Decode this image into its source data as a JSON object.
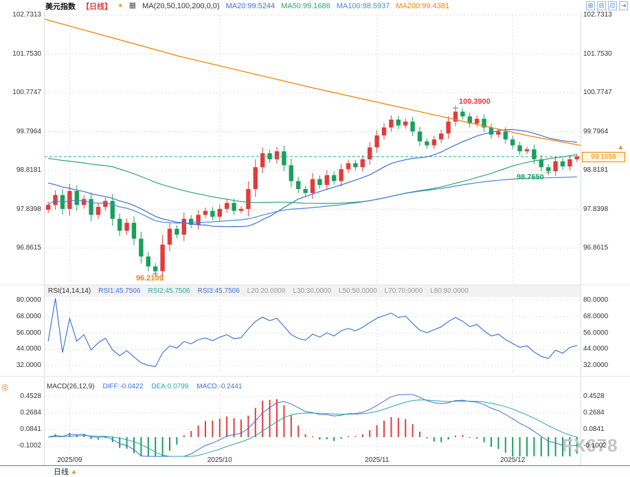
{
  "header": {
    "title": "美元指数",
    "period": "【日线】",
    "icons": [
      {
        "name": "alert-icon",
        "glyph": "●"
      },
      {
        "name": "chart-settings-icon",
        "glyph": "▦"
      }
    ],
    "ma_settings": "MA(20,50,100,200,0,0)",
    "ma20": "MA20:99.5244",
    "ma50": "MA50:99.1686",
    "ma100": "MA100:98.5937",
    "ma200": "MA200:99.4381"
  },
  "controls": {
    "icons": [
      {
        "name": "layout-grid-icon",
        "glyph": "⊞"
      },
      {
        "name": "layout-split-icon",
        "glyph": "⊟"
      },
      {
        "name": "layout-maximize-icon",
        "glyph": "⊡"
      },
      {
        "name": "collapse-panel-icon",
        "glyph": "⇥"
      }
    ]
  },
  "main_axis_labels": [
    "102.7313",
    "101.7530",
    "100.7747",
    "99.7964",
    "98.8181",
    "97.8398",
    "96.8615"
  ],
  "price_tag": "99.1658",
  "annotations": {
    "high": "100.3900",
    "recent_low": "98.7650",
    "sep_low": "96.2109"
  },
  "rsi": {
    "header": "RSI(14,14,14)",
    "rsi1": "RSI1:45.7506",
    "rsi2": "RSI2:45.7506",
    "rsi3": "RSI3:45.7506",
    "levels": [
      "L20:20.0000",
      "L30:30.0000",
      "L50:50.0000",
      "L70:70.0000",
      "L80:80.0000"
    ],
    "axis_labels": [
      "80.0000",
      "68.0000",
      "56.0000",
      "44.0000",
      "32.0000"
    ]
  },
  "macd": {
    "header": "MACD(26,12,9)",
    "diff": "DIFF:-0.0422",
    "dea": "DEA:0.0799",
    "macd": "MACD:-0.2441",
    "axis_labels": [
      "0.4528",
      "0.2684",
      "0.0841",
      "-0.1002"
    ]
  },
  "x_labels": [
    "2025/09",
    "2025/10",
    "2025/11",
    "2025/12"
  ],
  "bottom": {
    "timeframe": "日线",
    "arrow": "▲"
  },
  "icons": {
    "up_arrow": "▲",
    "crosshair": "◎"
  },
  "watermark": "FX678",
  "colors": {
    "up": "#e23b3b",
    "down": "#18a05c",
    "blue": "#3a6fd8",
    "lightblue": "#4a86d8",
    "teal": "#2aa3a3",
    "green": "#2fa36e",
    "orange": "#f08200",
    "gray": "#999999",
    "grid": "#dcdcdc",
    "tag_border": "#f08200",
    "tag_bg": "#fff8dc"
  },
  "chart_data": {
    "type": "candlestick",
    "symbol": "美元指数",
    "interval": "日线",
    "current_price": 99.1658,
    "ma_values": {
      "ma20": 99.5244,
      "ma50": 99.1686,
      "ma100": 98.5937,
      "ma200": 99.4381
    },
    "rsi_values": {
      "rsi1": 45.7506,
      "rsi2": 45.7506,
      "rsi3": 45.7506
    },
    "macd_values": {
      "diff": -0.0422,
      "dea": 0.0799,
      "macd": -0.2441
    },
    "y_ticks": [
      102.7313,
      101.753,
      100.7747,
      99.7964,
      98.8181,
      97.8398,
      96.8615
    ],
    "rsi_ticks": [
      80,
      68,
      56,
      44,
      32
    ],
    "macd_ticks": [
      0.4528,
      0.2684,
      0.0841,
      -0.1002
    ],
    "x_tick_labels": [
      "2025/09",
      "2025/10",
      "2025/11",
      "2025/12"
    ],
    "month_start_indices": [
      3,
      24,
      46,
      65
    ],
    "closes": [
      97.95,
      98.2,
      97.85,
      98.3,
      97.95,
      98.1,
      97.7,
      97.9,
      98.05,
      97.6,
      97.3,
      97.5,
      97.1,
      96.65,
      96.4,
      96.28,
      96.95,
      97.35,
      97.2,
      97.6,
      97.45,
      97.7,
      97.8,
      97.65,
      97.85,
      98.0,
      97.8,
      97.85,
      98.35,
      98.9,
      99.25,
      99.1,
      99.3,
      98.95,
      98.55,
      98.35,
      98.25,
      98.6,
      98.45,
      98.7,
      98.55,
      98.85,
      99.0,
      98.9,
      99.1,
      99.4,
      99.7,
      99.9,
      100.1,
      99.95,
      100.05,
      99.8,
      99.55,
      99.45,
      99.6,
      99.75,
      100.05,
      100.3,
      100.18,
      100.0,
      100.12,
      99.9,
      99.72,
      99.8,
      99.6,
      99.45,
      99.3,
      99.35,
      99.1,
      98.9,
      98.8,
      99.05,
      98.92,
      99.1,
      99.17
    ],
    "extremes": [
      {
        "index": 15,
        "kind": "low",
        "price": 96.2109
      },
      {
        "index": 57,
        "kind": "high",
        "price": 100.39
      },
      {
        "index": 70,
        "kind": "low",
        "price": 98.765
      }
    ],
    "ma200_line": [
      [
        0,
        102.63
      ],
      [
        0.25,
        101.7
      ],
      [
        0.5,
        100.9
      ],
      [
        0.75,
        100.15
      ],
      [
        0.9,
        99.7
      ],
      [
        1,
        99.45
      ]
    ],
    "ma_warmup": {
      "start": 100.3,
      "end": 98.0,
      "count": 40
    }
  }
}
